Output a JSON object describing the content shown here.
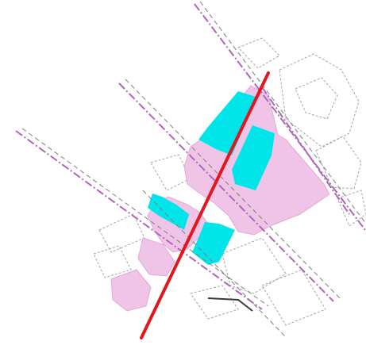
{
  "colors": {
    "background": "#ffffff",
    "pink_zone": "#f0c4e6",
    "pink_zone_stroke": "#e3a9d8",
    "cyan_zone": "#00e5ea",
    "road_purple": "#b065b8",
    "road_dark": "#8a8a8a",
    "outline_gray": "#9a9a9a",
    "red_line": "#e4161d"
  },
  "map": {
    "legend": [],
    "labels": []
  }
}
